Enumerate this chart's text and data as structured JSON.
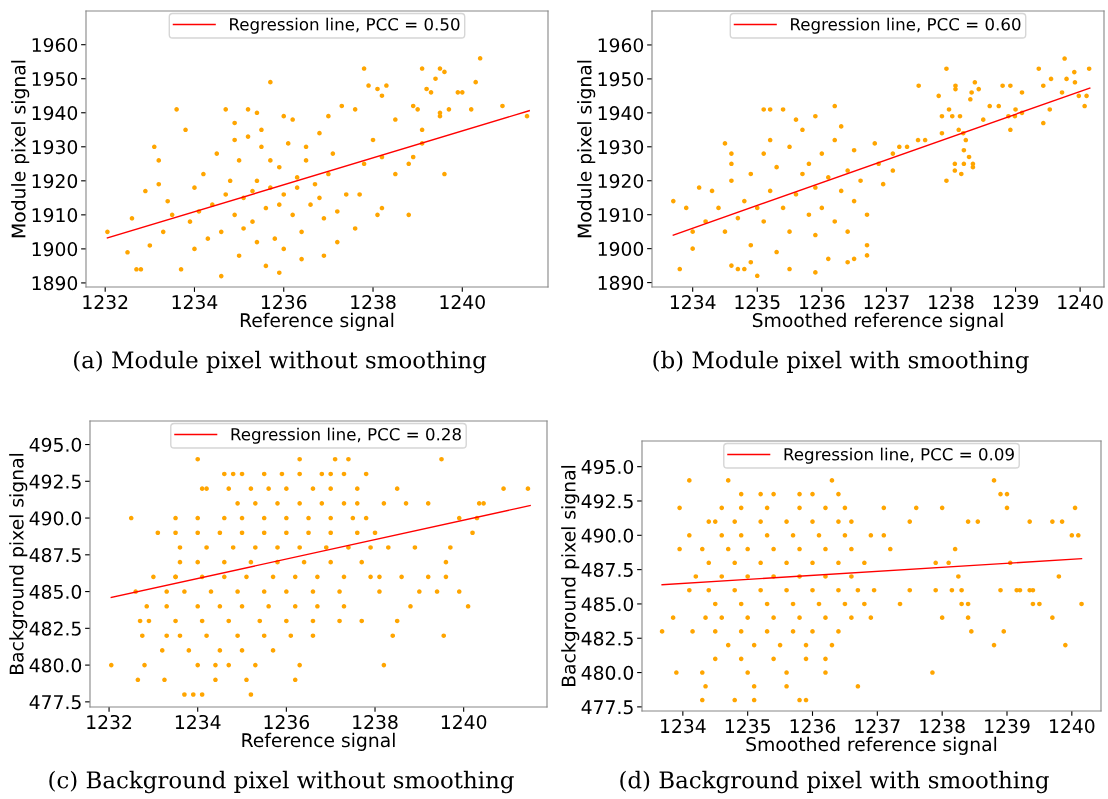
{
  "chart_data": [
    {
      "type": "scatter",
      "xlabel": "Reference signal",
      "ylabel": "Module pixel signal",
      "annotations": [
        "(a) Module pixel without smoothing"
      ],
      "xlim": [
        1231.57,
        1241.92
      ],
      "ylim": [
        1888.8,
        1969.9
      ],
      "xticks": [
        1232,
        1234,
        1236,
        1238,
        1240
      ],
      "yticks": [
        1890,
        1900,
        1910,
        1920,
        1930,
        1940,
        1950,
        1960
      ],
      "grid": false,
      "legend": "top",
      "series": [
        {
          "marker": "circle",
          "color": "#ffa500",
          "x": [
            1232.05,
            1232.5,
            1232.7,
            1232.8,
            1232.6,
            1232.9,
            1233.1,
            1233.2,
            1233.6,
            1233.7,
            1233.8,
            1234.0,
            1234.6,
            1234.7,
            1234.9,
            1235.2,
            1235.4,
            1235.7,
            1235.9,
            1235.6,
            1236.0,
            1236.2,
            1236.4,
            1236.9,
            1237.0,
            1237.2,
            1237.3,
            1237.6,
            1237.6,
            1237.8,
            1237.9,
            1238.1,
            1238.2,
            1238.3,
            1238.1,
            1238.2,
            1238.5,
            1238.8,
            1238.9,
            1239.0,
            1239.1,
            1239.2,
            1239.1,
            1239.3,
            1239.4,
            1239.5,
            1239.6,
            1239.5,
            1239.5,
            1239.6,
            1239.7,
            1239.9,
            1240.0,
            1240.2,
            1240.3,
            1240.4,
            1240.9,
            1241.45,
            1238.5,
            1238.8,
            1238.9,
            1239.1,
            1238.2,
            1238.0,
            1237.8,
            1237.7,
            1237.4,
            1237.2,
            1234.0,
            1234.2,
            1234.4,
            1234.5,
            1234.6,
            1234.8,
            1234.9,
            1235.0,
            1235.1,
            1235.2,
            1235.3,
            1235.4,
            1235.5,
            1235.6,
            1235.7,
            1235.8,
            1235.9,
            1236.0,
            1236.1,
            1236.2,
            1236.3,
            1236.4,
            1236.5,
            1236.6,
            1236.7,
            1236.8,
            1236.9,
            1237.0,
            1237.1,
            1233.5,
            1233.3,
            1233.9,
            1234.3,
            1235.0,
            1235.4,
            1236.0,
            1236.5,
            1235.5,
            1234.9,
            1235.7,
            1233.4,
            1233.0,
            1233.2,
            1234.1,
            1236.8,
            1235.3,
            1235.9,
            1236.3,
            1234.7,
            1235.1
          ],
          "values": [
            1905,
            1899,
            1894,
            1894,
            1909,
            1917,
            1930,
            1926,
            1941,
            1894,
            1935,
            1900,
            1892,
            1941,
            1937,
            1941,
            1940,
            1949,
            1893,
            1895,
            1939,
            1938,
            1897,
            1898,
            1939,
            1902,
            1942,
            1941,
            1906,
            1953,
            1948,
            1947,
            1945,
            1948,
            1910,
            1912,
            1938,
            1910,
            1942,
            1941,
            1935,
            1947,
            1953,
            1946,
            1950,
            1953,
            1952,
            1940,
            1939,
            1922,
            1941,
            1946,
            1946,
            1941,
            1949,
            1956,
            1942,
            1939,
            1922,
            1925,
            1927,
            1931,
            1927,
            1932,
            1925,
            1916,
            1916,
            1911,
            1918,
            1922,
            1913,
            1928,
            1905,
            1920,
            1910,
            1926,
            1915,
            1933,
            1908,
            1920,
            1930,
            1912,
            1918,
            1903,
            1924,
            1916,
            1931,
            1910,
            1921,
            1905,
            1926,
            1913,
            1919,
            1934,
            1909,
            1922,
            1928,
            1910,
            1905,
            1908,
            1903,
            1898,
            1902,
            1900,
            1930,
            1935,
            1932,
            1926,
            1914,
            1901,
            1919,
            1911,
            1915,
            1917,
            1913,
            1918,
            1916,
            1906
          ]
        },
        {
          "type": "line",
          "name": "Regression line, PCC = 0.50",
          "color": "#ff0000",
          "x": [
            1232.05,
            1241.5
          ],
          "values": [
            1903.2,
            1940.6
          ]
        }
      ]
    },
    {
      "type": "scatter",
      "xlabel": "Smoothed reference signal",
      "ylabel": "Module pixel signal",
      "annotations": [
        "(b) Module pixel with smoothing"
      ],
      "xlim": [
        1233.37,
        1240.37
      ],
      "ylim": [
        1888.7,
        1970.0
      ],
      "xticks": [
        1234,
        1235,
        1236,
        1237,
        1238,
        1239,
        1240
      ],
      "yticks": [
        1890,
        1900,
        1910,
        1920,
        1930,
        1940,
        1950,
        1960
      ],
      "grid": false,
      "legend": "top",
      "series": [
        {
          "marker": "circle",
          "color": "#ffa500",
          "x": [
            1233.7,
            1233.8,
            1234.0,
            1234.1,
            1234.3,
            1234.5,
            1234.6,
            1234.6,
            1234.7,
            1234.8,
            1235.0,
            1235.1,
            1235.2,
            1235.4,
            1235.9,
            1236.2,
            1236.4,
            1236.5,
            1236.7,
            1236.7,
            1236.82,
            1236.88,
            1236.95,
            1237.1,
            1237.1,
            1237.2,
            1237.32,
            1237.49,
            1237.5,
            1237.6,
            1237.81,
            1237.86,
            1237.86,
            1237.93,
            1237.93,
            1237.97,
            1238.02,
            1238.06,
            1238.06,
            1238.07,
            1238.07,
            1238.12,
            1238.14,
            1238.16,
            1238.19,
            1238.2,
            1238.2,
            1238.23,
            1238.28,
            1238.3,
            1238.32,
            1238.34,
            1238.34,
            1238.37,
            1238.43,
            1238.5,
            1238.6,
            1238.74,
            1238.8,
            1238.89,
            1238.92,
            1238.92,
            1238.99,
            1239.0,
            1239.1,
            1239.1,
            1239.36,
            1239.43,
            1239.43,
            1239.53,
            1239.55,
            1239.72,
            1239.76,
            1239.79,
            1239.91,
            1239.92,
            1239.98,
            1240.07,
            1240.1,
            1240.14,
            1234.4,
            1234.5,
            1234.6,
            1234.7,
            1234.8,
            1234.9,
            1234.9,
            1235.0,
            1235.1,
            1235.1,
            1235.2,
            1235.3,
            1235.3,
            1235.4,
            1235.5,
            1235.5,
            1235.6,
            1235.7,
            1235.7,
            1235.8,
            1235.8,
            1235.9,
            1235.9,
            1236.0,
            1236.0,
            1236.1,
            1236.2,
            1236.2,
            1236.3,
            1236.4,
            1236.4,
            1236.5,
            1236.5,
            1236.6,
            1236.7,
            1234.2,
            1234.0,
            1233.9,
            1234.6,
            1235.2,
            1235.6,
            1235.9,
            1236.1,
            1235.5,
            1234.9,
            1236.3
          ],
          "values": [
            1914,
            1894,
            1900,
            1918,
            1917,
            1931,
            1928,
            1895,
            1894,
            1894,
            1892,
            1941,
            1941,
            1941,
            1893,
            1942,
            1896,
            1897,
            1898,
            1901,
            1931,
            1925,
            1919,
            1923,
            1928,
            1930,
            1930,
            1932,
            1948,
            1932,
            1945,
            1939,
            1934,
            1953,
            1920,
            1941,
            1939,
            1925,
            1923,
            1947,
            1948,
            1935,
            1939,
            1922,
            1934,
            1929,
            1925,
            1932,
            1927,
            1944,
            1946,
            1925,
            1924,
            1949,
            1947,
            1938,
            1942,
            1942,
            1948,
            1939,
            1948,
            1935,
            1939,
            1941,
            1946,
            1940,
            1953,
            1948,
            1937,
            1941,
            1950,
            1946,
            1956,
            1950,
            1952,
            1949,
            1945,
            1942,
            1945,
            1953,
            1912,
            1905,
            1920,
            1909,
            1914,
            1922,
            1901,
            1912,
            1928,
            1908,
            1917,
            1924,
            1899,
            1912,
            1930,
            1905,
            1916,
            1922,
            1935,
            1910,
            1925,
            1918,
            1904,
            1928,
            1912,
            1921,
            1908,
            1932,
            1917,
            1923,
            1905,
            1914,
            1929,
            1920,
            1910,
            1908,
            1905,
            1912,
            1925,
            1932,
            1938,
            1939,
            1897,
            1894,
            1896,
            1936
          ]
        },
        {
          "type": "line",
          "name": "Regression line, PCC = 0.60",
          "color": "#ff0000",
          "x": [
            1233.7,
            1240.15
          ],
          "values": [
            1904,
            1947.3
          ]
        }
      ]
    },
    {
      "type": "scatter",
      "xlabel": "Reference signal",
      "ylabel": "Background pixel signal",
      "annotations": [
        "(c) Background pixel without smoothing"
      ],
      "xlim": [
        1231.57,
        1241.88
      ],
      "ylim": [
        477.15,
        496.6
      ],
      "xticks": [
        1232,
        1234,
        1236,
        1238,
        1240
      ],
      "yticks": [
        {
          "value": 477.5,
          "label": "477.5"
        },
        {
          "value": 480,
          "label": "480.0"
        },
        {
          "value": 482.5,
          "label": "482.5"
        },
        {
          "value": 485,
          "label": "485.0"
        },
        {
          "value": 487.5,
          "label": "487.5"
        },
        {
          "value": 490,
          "label": "490.0"
        },
        {
          "value": 492.5,
          "label": "492.5"
        },
        {
          "value": 495,
          "label": "495.0"
        }
      ],
      "grid": false,
      "legend": "top",
      "series": [
        {
          "marker": "circle",
          "color": "#ffa500",
          "x": [
            1232.05,
            1232.5,
            1232.6,
            1232.65,
            1232.7,
            1232.75,
            1232.8,
            1232.85,
            1232.9,
            1233.0,
            1233.1,
            1233.2,
            1233.25,
            1233.3,
            1233.3,
            1233.5,
            1233.7,
            1233.9,
            1234.0,
            1234.0,
            1234.1,
            1234.2,
            1234.4,
            1234.4,
            1234.6,
            1234.7,
            1235.2,
            1235.1,
            1235.3,
            1236.2,
            1236.3,
            1236.3,
            1237.1,
            1237.4,
            1238.2,
            1238.4,
            1238.5,
            1238.5,
            1238.8,
            1238.9,
            1239.0,
            1239.2,
            1239.2,
            1239.4,
            1239.5,
            1239.55,
            1239.6,
            1239.6,
            1239.7,
            1239.9,
            1239.9,
            1240.1,
            1240.2,
            1240.3,
            1240.35,
            1240.45,
            1240.9,
            1241.45,
            1238.1,
            1238.0,
            1238.2,
            1238.7,
            1238.6,
            1238.3,
            1237.8,
            1237.7,
            1234.8,
            1235.0,
            1235.5,
            1235.9,
            1236.3,
            1237.0,
            1237.3,
            1236.8,
            1234.1,
            1234.7,
            1235.2,
            1235.6,
            1236.0,
            1236.6,
            1237.0,
            1237.6,
            1234.9,
            1235.3,
            1235.8,
            1236.3,
            1236.8,
            1237.3,
            1237.6,
            1233.5,
            1234.0,
            1234.6,
            1235.0,
            1235.5,
            1236.0,
            1236.5,
            1237.0,
            1237.5,
            1237.8,
            1233.5,
            1234.0,
            1234.5,
            1235.0,
            1235.5,
            1236.0,
            1236.5,
            1237.0,
            1237.6,
            1233.6,
            1234.2,
            1234.8,
            1235.3,
            1235.8,
            1236.3,
            1236.9,
            1237.4,
            1237.9,
            1233.6,
            1234.0,
            1234.6,
            1235.2,
            1235.8,
            1236.4,
            1237.0,
            1237.7,
            1233.5,
            1234.1,
            1234.6,
            1235.1,
            1235.7,
            1236.2,
            1236.7,
            1237.3,
            1237.9,
            1233.7,
            1234.3,
            1234.9,
            1235.5,
            1236.0,
            1236.6,
            1237.2,
            1238.1,
            1233.3,
            1234.0,
            1234.5,
            1235.0,
            1235.6,
            1236.2,
            1236.7,
            1237.3,
            1233.5,
            1234.1,
            1234.7,
            1235.4,
            1236.0,
            1236.6,
            1237.2,
            1233.6,
            1234.2,
            1234.9,
            1235.5,
            1236.1,
            1236.6,
            1233.8,
            1234.5,
            1235.0,
            1235.7
          ],
          "values": [
            480,
            490,
            485,
            479,
            483,
            482,
            480,
            484,
            483,
            486,
            489,
            481,
            479,
            482,
            485,
            486,
            478,
            478,
            494,
            480,
            478,
            492,
            480,
            479,
            493,
            480,
            478,
            479,
            480,
            479,
            480,
            494,
            494,
            494,
            480,
            482,
            483,
            492,
            484,
            488,
            485,
            491,
            486,
            485,
            494,
            482,
            486,
            487,
            488,
            485,
            490,
            484,
            489,
            490,
            491,
            491,
            492,
            492,
            486,
            489,
            491,
            491,
            486,
            488,
            493,
            483,
            493,
            493,
            493,
            493,
            493,
            493,
            493,
            493,
            492,
            492,
            492,
            492,
            492,
            492,
            492,
            492,
            491,
            491,
            491,
            491,
            491,
            491,
            491,
            490,
            490,
            490,
            490,
            490,
            490,
            490,
            490,
            490,
            490,
            489,
            489,
            489,
            489,
            489,
            489,
            489,
            489,
            489,
            488,
            488,
            488,
            488,
            488,
            488,
            488,
            488,
            488,
            487,
            487,
            487,
            487,
            487,
            487,
            487,
            487,
            486,
            486,
            486,
            486,
            486,
            486,
            486,
            486,
            486,
            485,
            485,
            485,
            485,
            485,
            485,
            485,
            485,
            484,
            484,
            484,
            484,
            484,
            484,
            484,
            484,
            483,
            483,
            483,
            483,
            483,
            483,
            483,
            482,
            482,
            482,
            482,
            482,
            482,
            481,
            481,
            481,
            481
          ]
        },
        {
          "type": "line",
          "name": "Regression line, PCC = 0.28",
          "color": "#ff0000",
          "x": [
            1232.05,
            1241.5
          ],
          "values": [
            484.6,
            490.85
          ]
        }
      ]
    },
    {
      "type": "scatter",
      "xlabel": "Smoothed reference signal",
      "ylabel": "Background pixel signal",
      "annotations": [
        "(d) Background pixel with smoothing"
      ],
      "xlim": [
        1233.37,
        1240.45
      ],
      "ylim": [
        477.2,
        496.87
      ],
      "xticks": [
        1234,
        1235,
        1236,
        1237,
        1238,
        1239,
        1240
      ],
      "yticks": [
        {
          "value": 477.5,
          "label": "477.5"
        },
        {
          "value": 480,
          "label": "480.0"
        },
        {
          "value": 482.5,
          "label": "482.5"
        },
        {
          "value": 485,
          "label": "485.0"
        },
        {
          "value": 487.5,
          "label": "487.5"
        },
        {
          "value": 490,
          "label": "490.0"
        },
        {
          "value": 492.5,
          "label": "492.5"
        },
        {
          "value": 495,
          "label": "495.0"
        }
      ],
      "grid": false,
      "legend": "top",
      "series": [
        {
          "marker": "circle",
          "color": "#ffa500",
          "x": [
            1233.68,
            1233.85,
            1233.9,
            1233.95,
            1233.95,
            1234.1,
            1234.1,
            1234.1,
            1234.15,
            1234.3,
            1234.3,
            1234.35,
            1234.35,
            1234.4,
            1234.5,
            1234.7,
            1234.8,
            1235.1,
            1235.1,
            1235.6,
            1235.8,
            1235.9,
            1236.3,
            1236.7,
            1236.9,
            1236.95,
            1237.1,
            1237.1,
            1237.2,
            1237.35,
            1237.5,
            1237.5,
            1237.6,
            1237.85,
            1237.9,
            1237.9,
            1238.0,
            1238.0,
            1238.1,
            1238.15,
            1238.2,
            1238.25,
            1238.3,
            1238.3,
            1238.4,
            1238.4,
            1238.4,
            1238.45,
            1238.55,
            1238.8,
            1238.8,
            1238.9,
            1238.9,
            1238.95,
            1239.0,
            1239.0,
            1239.05,
            1239.15,
            1239.2,
            1239.35,
            1239.35,
            1239.4,
            1239.4,
            1239.5,
            1239.7,
            1239.7,
            1239.8,
            1239.85,
            1239.9,
            1240.0,
            1240.05,
            1240.1,
            1240.15,
            1234.9,
            1235.2,
            1235.4,
            1235.8,
            1236.0,
            1236.4,
            1234.6,
            1234.9,
            1235.3,
            1235.8,
            1236.2,
            1236.5,
            1234.5,
            1234.8,
            1235.2,
            1235.6,
            1236.0,
            1236.4,
            1236.6,
            1234.6,
            1234.9,
            1235.3,
            1235.7,
            1236.1,
            1236.5,
            1234.3,
            1234.7,
            1235.0,
            1235.4,
            1235.8,
            1236.2,
            1236.6,
            1234.4,
            1234.8,
            1235.2,
            1235.6,
            1236.0,
            1236.4,
            1236.8,
            1234.2,
            1234.6,
            1235.0,
            1235.4,
            1235.8,
            1236.2,
            1236.6,
            1234.4,
            1234.8,
            1235.2,
            1235.6,
            1236.0,
            1236.4,
            1236.7,
            1234.5,
            1234.9,
            1235.3,
            1235.7,
            1236.1,
            1236.5,
            1236.8,
            1234.6,
            1235.0,
            1235.4,
            1235.8,
            1236.2,
            1236.6,
            1236.9,
            1234.5,
            1234.9,
            1235.3,
            1235.7,
            1236.0,
            1236.4,
            1234.7,
            1235.1,
            1235.5,
            1235.9,
            1236.3,
            1234.9,
            1235.4,
            1235.9,
            1236.2,
            1235.0,
            1235.6,
            1236.2
          ],
          "values": [
            483,
            484,
            480,
            492,
            489,
            494,
            490,
            486,
            483,
            478,
            480,
            479,
            484,
            491,
            481,
            494,
            478,
            478,
            479,
            479,
            478,
            478,
            494,
            479,
            490,
            486,
            490,
            492,
            489,
            485,
            486,
            491,
            492,
            480,
            488,
            486,
            484,
            492,
            488,
            486,
            489,
            487,
            486,
            485,
            484,
            485,
            491,
            483,
            491,
            494,
            482,
            493,
            486,
            483,
            493,
            492,
            488,
            486,
            486,
            491,
            486,
            485,
            486,
            485,
            484,
            491,
            487,
            491,
            482,
            490,
            492,
            490,
            485,
            493,
            493,
            493,
            493,
            493,
            493,
            492,
            492,
            492,
            492,
            492,
            492,
            491,
            491,
            491,
            491,
            491,
            491,
            491,
            490,
            490,
            490,
            490,
            490,
            490,
            489,
            489,
            489,
            489,
            489,
            489,
            489,
            488,
            488,
            488,
            488,
            488,
            488,
            488,
            487,
            487,
            487,
            487,
            487,
            487,
            487,
            486,
            486,
            486,
            486,
            486,
            486,
            486,
            485,
            485,
            485,
            485,
            485,
            485,
            485,
            484,
            484,
            484,
            484,
            484,
            484,
            484,
            483,
            483,
            483,
            483,
            483,
            483,
            482,
            482,
            482,
            482,
            482,
            481,
            481,
            481,
            481,
            480,
            480,
            480
          ]
        },
        {
          "type": "line",
          "name": "Regression line, PCC = 0.09",
          "color": "#ff0000",
          "x": [
            1233.68,
            1240.15
          ],
          "values": [
            486.4,
            488.3
          ]
        }
      ]
    }
  ]
}
